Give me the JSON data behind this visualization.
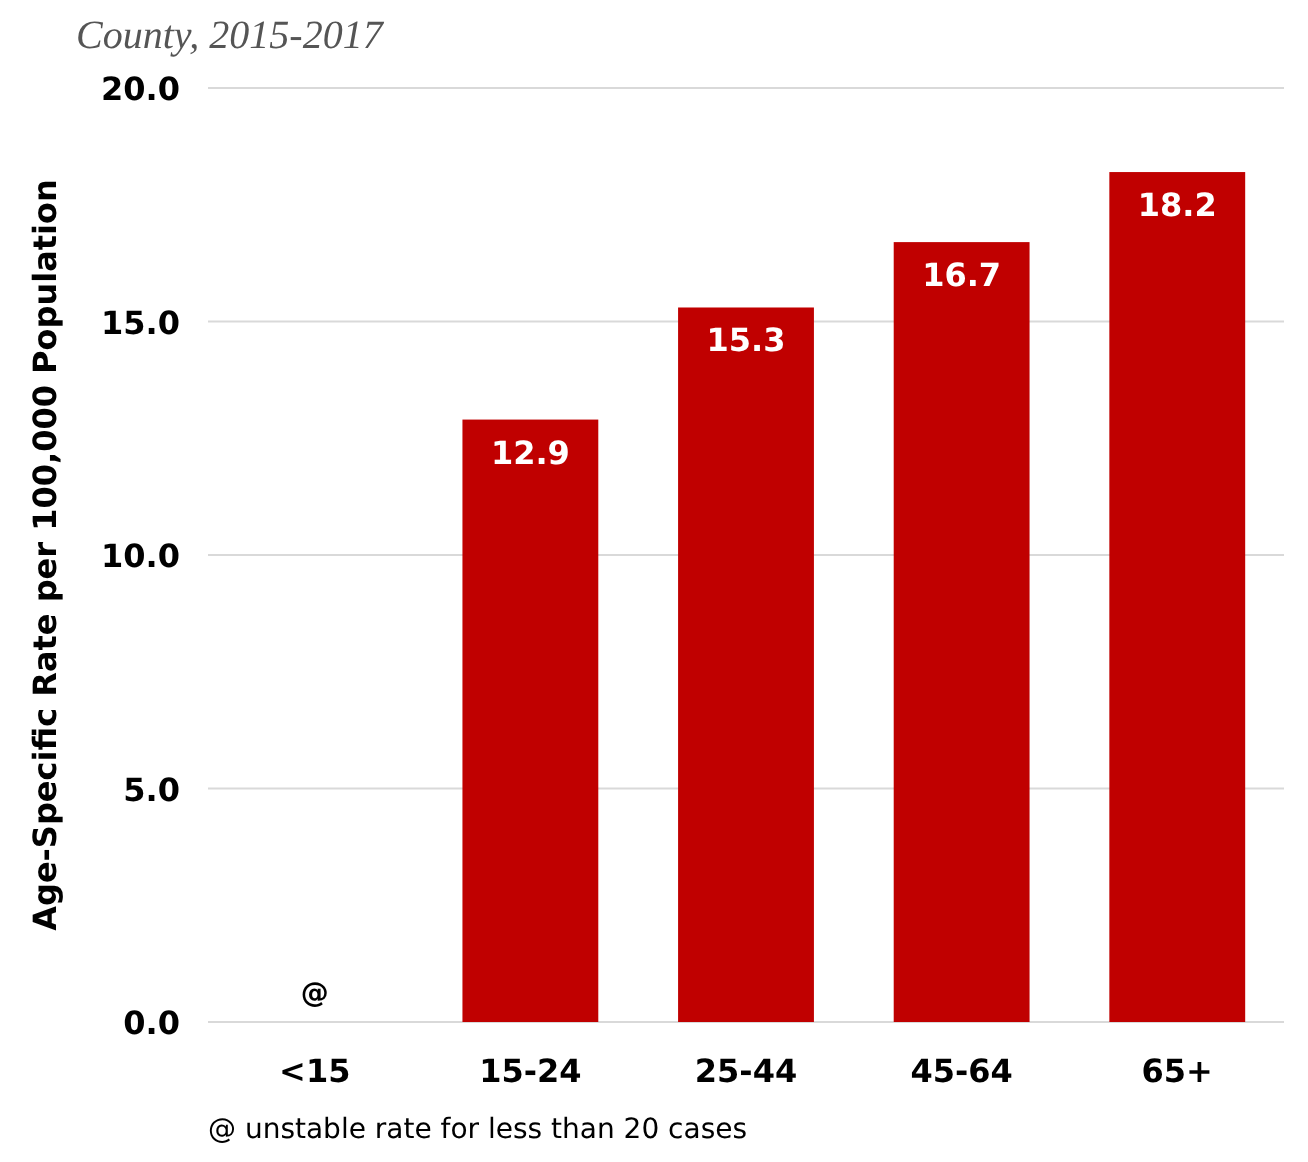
{
  "chart_data": {
    "type": "bar",
    "title": "County, 2015-2017",
    "ylabel": "Age-Specific Rate per 100,000 Population",
    "categories": [
      "<15",
      "15-24",
      "25-44",
      "45-64",
      "65+"
    ],
    "values": [
      null,
      12.9,
      15.3,
      16.7,
      18.2
    ],
    "value_labels": [
      "@",
      "12.9",
      "15.3",
      "16.7",
      "18.2"
    ],
    "color": "#c00000",
    "ylim": [
      0,
      20
    ],
    "yticks": [
      {
        "value": 0,
        "label": "0.0"
      },
      {
        "value": 5,
        "label": "5.0"
      },
      {
        "value": 10,
        "label": "10.0"
      },
      {
        "value": 15,
        "label": "15.0"
      },
      {
        "value": 20,
        "label": "20.0"
      }
    ],
    "grid": "y",
    "annotations": [
      "@ unstable rate for less than 20 cases"
    ]
  }
}
